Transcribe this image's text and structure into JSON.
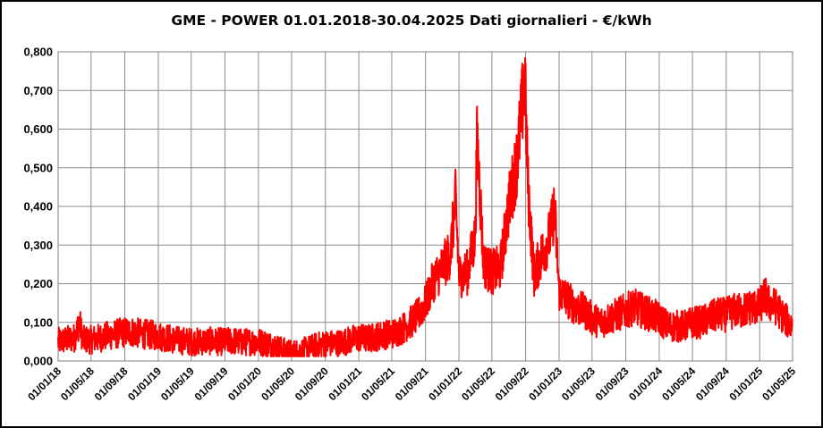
{
  "chart_data": {
    "type": "line",
    "title": "GME - POWER 01.01.2018-30.04.2025 Dati giornalieri - €/kWh",
    "xlabel": "",
    "ylabel": "",
    "x_range": [
      "01/01/18",
      "01/05/25"
    ],
    "ylim": [
      0,
      0.8
    ],
    "grid": true,
    "legend": "none",
    "y_ticks": [
      "0,000",
      "0,100",
      "0,200",
      "0,300",
      "0,400",
      "0,500",
      "0,600",
      "0,700",
      "0,800"
    ],
    "x_ticks": [
      "01/01/18",
      "01/05/18",
      "01/09/18",
      "01/01/19",
      "01/05/19",
      "01/09/19",
      "01/01/20",
      "01/05/20",
      "01/09/20",
      "01/01/21",
      "01/05/21",
      "01/09/21",
      "01/01/22",
      "01/05/22",
      "01/09/22",
      "01/01/23",
      "01/05/23",
      "01/09/23",
      "01/01/24",
      "01/05/24",
      "01/09/24",
      "01/01/25",
      "01/05/25"
    ],
    "series": [
      {
        "color": "#ff0000",
        "x": [
          "2018-01-01",
          "2018-02-01",
          "2018-03-01",
          "2018-03-20",
          "2018-04-01",
          "2018-05-01",
          "2018-06-01",
          "2018-07-01",
          "2018-08-01",
          "2018-09-01",
          "2018-10-01",
          "2018-11-01",
          "2018-12-01",
          "2019-01-01",
          "2019-02-01",
          "2019-03-01",
          "2019-04-01",
          "2019-05-01",
          "2019-06-01",
          "2019-07-01",
          "2019-08-01",
          "2019-09-01",
          "2019-10-01",
          "2019-11-01",
          "2019-12-01",
          "2020-01-01",
          "2020-02-01",
          "2020-03-01",
          "2020-04-01",
          "2020-05-01",
          "2020-06-01",
          "2020-07-01",
          "2020-08-01",
          "2020-09-01",
          "2020-10-01",
          "2020-11-01",
          "2020-12-01",
          "2021-01-01",
          "2021-02-01",
          "2021-03-01",
          "2021-04-01",
          "2021-05-01",
          "2021-06-01",
          "2021-07-01",
          "2021-08-01",
          "2021-09-01",
          "2021-10-01",
          "2021-11-01",
          "2021-12-01",
          "2021-12-20",
          "2022-01-01",
          "2022-02-01",
          "2022-03-01",
          "2022-03-08",
          "2022-04-01",
          "2022-05-01",
          "2022-06-01",
          "2022-07-01",
          "2022-08-01",
          "2022-08-29",
          "2022-09-10",
          "2022-10-01",
          "2022-11-01",
          "2022-12-01",
          "2022-12-15",
          "2023-01-01",
          "2023-02-01",
          "2023-03-01",
          "2023-04-01",
          "2023-05-01",
          "2023-06-01",
          "2023-07-01",
          "2023-08-01",
          "2023-09-01",
          "2023-10-01",
          "2023-11-01",
          "2023-12-01",
          "2024-01-01",
          "2024-02-01",
          "2024-03-01",
          "2024-04-01",
          "2024-05-01",
          "2024-06-01",
          "2024-07-01",
          "2024-08-01",
          "2024-09-01",
          "2024-10-01",
          "2024-11-01",
          "2024-12-01",
          "2025-01-01",
          "2025-01-20",
          "2025-02-01",
          "2025-03-01",
          "2025-04-01",
          "2025-04-30"
        ],
        "values": [
          0.05,
          0.055,
          0.06,
          0.1,
          0.055,
          0.055,
          0.06,
          0.065,
          0.07,
          0.075,
          0.075,
          0.07,
          0.068,
          0.065,
          0.06,
          0.055,
          0.052,
          0.05,
          0.05,
          0.052,
          0.05,
          0.05,
          0.052,
          0.048,
          0.05,
          0.05,
          0.045,
          0.038,
          0.028,
          0.022,
          0.025,
          0.032,
          0.04,
          0.045,
          0.045,
          0.048,
          0.055,
          0.06,
          0.058,
          0.062,
          0.068,
          0.07,
          0.08,
          0.095,
          0.115,
          0.15,
          0.21,
          0.24,
          0.28,
          0.42,
          0.22,
          0.23,
          0.32,
          0.58,
          0.25,
          0.23,
          0.24,
          0.4,
          0.52,
          0.73,
          0.45,
          0.22,
          0.28,
          0.33,
          0.4,
          0.18,
          0.16,
          0.14,
          0.13,
          0.11,
          0.1,
          0.11,
          0.12,
          0.13,
          0.14,
          0.13,
          0.12,
          0.11,
          0.09,
          0.09,
          0.09,
          0.1,
          0.1,
          0.11,
          0.12,
          0.12,
          0.13,
          0.13,
          0.14,
          0.14,
          0.17,
          0.15,
          0.14,
          0.11,
          0.09
        ]
      }
    ]
  }
}
